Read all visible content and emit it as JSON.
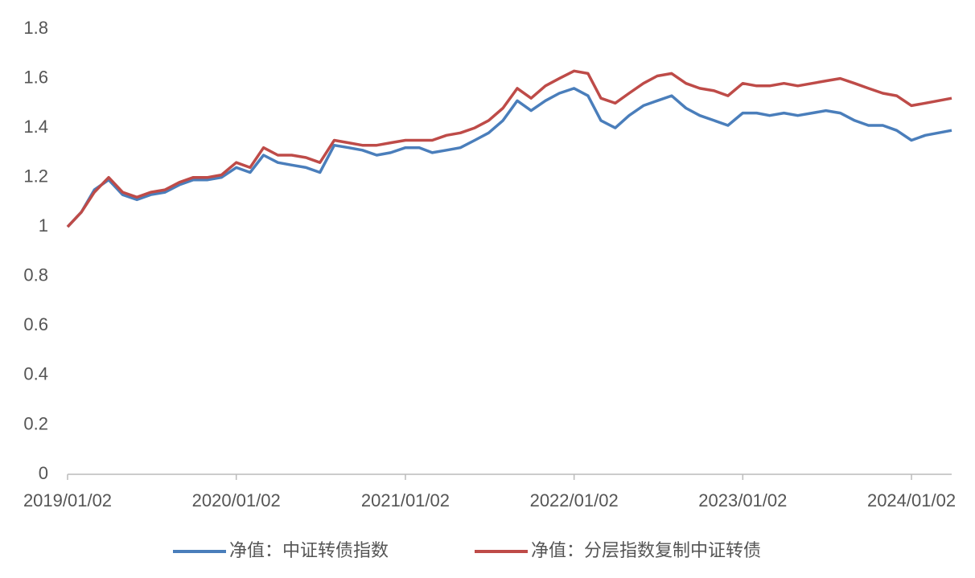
{
  "chart_data": {
    "type": "line",
    "x": [
      "2019/01/02",
      "2019/02/01",
      "2019/03/01",
      "2019/04/01",
      "2019/05/01",
      "2019/06/01",
      "2019/07/01",
      "2019/08/01",
      "2019/09/01",
      "2019/10/01",
      "2019/11/01",
      "2019/12/01",
      "2020/01/02",
      "2020/02/01",
      "2020/03/01",
      "2020/04/01",
      "2020/05/01",
      "2020/06/01",
      "2020/07/01",
      "2020/08/01",
      "2020/09/01",
      "2020/10/01",
      "2020/11/01",
      "2020/12/01",
      "2021/01/02",
      "2021/02/01",
      "2021/03/01",
      "2021/04/01",
      "2021/05/01",
      "2021/06/01",
      "2021/07/01",
      "2021/08/01",
      "2021/09/01",
      "2021/10/01",
      "2021/11/01",
      "2021/12/01",
      "2022/01/02",
      "2022/02/01",
      "2022/03/01",
      "2022/04/01",
      "2022/05/01",
      "2022/06/01",
      "2022/07/01",
      "2022/08/01",
      "2022/09/01",
      "2022/10/01",
      "2022/11/01",
      "2022/12/01",
      "2023/01/02",
      "2023/02/01",
      "2023/03/01",
      "2023/04/01",
      "2023/05/01",
      "2023/06/01",
      "2023/07/01",
      "2023/08/01",
      "2023/09/01",
      "2023/10/01",
      "2023/11/01",
      "2023/12/01",
      "2024/01/02",
      "2024/02/01",
      "2024/03/29"
    ],
    "series": [
      {
        "name": "净值：中证转债指数",
        "color": "#4a7ebb",
        "values": [
          1.0,
          1.06,
          1.15,
          1.19,
          1.13,
          1.11,
          1.13,
          1.14,
          1.17,
          1.19,
          1.19,
          1.2,
          1.24,
          1.22,
          1.29,
          1.26,
          1.25,
          1.24,
          1.22,
          1.33,
          1.32,
          1.31,
          1.29,
          1.3,
          1.32,
          1.32,
          1.3,
          1.31,
          1.32,
          1.35,
          1.38,
          1.43,
          1.51,
          1.47,
          1.51,
          1.54,
          1.56,
          1.53,
          1.43,
          1.4,
          1.45,
          1.49,
          1.51,
          1.53,
          1.48,
          1.45,
          1.43,
          1.41,
          1.46,
          1.46,
          1.45,
          1.46,
          1.45,
          1.46,
          1.47,
          1.46,
          1.43,
          1.41,
          1.41,
          1.39,
          1.35,
          1.37,
          1.39
        ]
      },
      {
        "name": "净值：分层指数复制中证转债",
        "color": "#be4b48",
        "values": [
          1.0,
          1.06,
          1.14,
          1.2,
          1.14,
          1.12,
          1.14,
          1.15,
          1.18,
          1.2,
          1.2,
          1.21,
          1.26,
          1.24,
          1.32,
          1.29,
          1.29,
          1.28,
          1.26,
          1.35,
          1.34,
          1.33,
          1.33,
          1.34,
          1.35,
          1.35,
          1.35,
          1.37,
          1.38,
          1.4,
          1.43,
          1.48,
          1.56,
          1.52,
          1.57,
          1.6,
          1.63,
          1.62,
          1.52,
          1.5,
          1.54,
          1.58,
          1.61,
          1.62,
          1.58,
          1.56,
          1.55,
          1.53,
          1.58,
          1.57,
          1.57,
          1.58,
          1.57,
          1.58,
          1.59,
          1.6,
          1.58,
          1.56,
          1.54,
          1.53,
          1.49,
          1.5,
          1.52
        ]
      }
    ],
    "xlim": [
      "2019/01/02",
      "2024/03/29"
    ],
    "xticks": [
      "2019/01/02",
      "2020/01/02",
      "2021/01/02",
      "2022/01/02",
      "2023/01/02",
      "2024/01/02"
    ],
    "ylim": [
      0,
      1.8
    ],
    "yticks": [
      0,
      0.2,
      0.4,
      0.6,
      0.8,
      1,
      1.2,
      1.4,
      1.6,
      1.8
    ],
    "grid": false,
    "legend": "bottom"
  }
}
